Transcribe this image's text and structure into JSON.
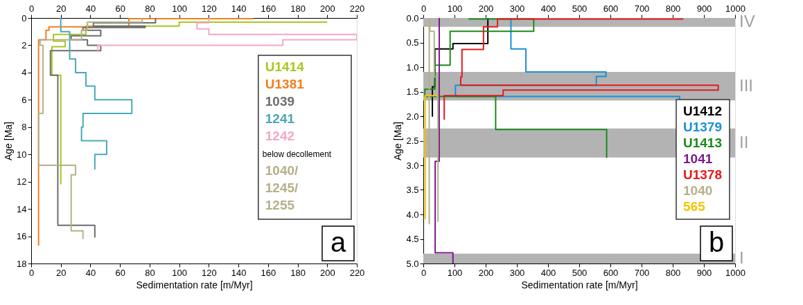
{
  "chart_data": [
    {
      "type": "line",
      "xlabel": "Sedimentation rate [m/Myr]",
      "ylabel": "Age [Ma]",
      "xlim": [
        0,
        220
      ],
      "xticks": [
        0,
        20,
        40,
        60,
        80,
        100,
        120,
        140,
        160,
        180,
        200,
        220
      ],
      "x2lim": [
        0,
        220
      ],
      "x2ticks": [
        0,
        20,
        40,
        60,
        80,
        100,
        120,
        140,
        160,
        180,
        200,
        220
      ],
      "ylim": [
        18,
        0
      ],
      "yticks": [
        0,
        2,
        4,
        6,
        8,
        10,
        12,
        14,
        16,
        18
      ],
      "grid": false,
      "legend": "right",
      "line_style": "solid",
      "annotations": [
        "below decollement",
        "a"
      ],
      "series": [
        {
          "name": "U1414",
          "color": "#a8c81e",
          "x": [
            200,
            100,
            100,
            37,
            37,
            15,
            15,
            23,
            23,
            14,
            14,
            20,
            20
          ],
          "values": [
            0.3,
            0.3,
            0.6,
            0.6,
            1.2,
            1.2,
            1.7,
            1.7,
            2.1,
            2.1,
            4.2,
            4.2,
            12.2
          ]
        },
        {
          "name": "U1381",
          "color": "#f07f22",
          "x": [
            150,
            66,
            66,
            12,
            12,
            10,
            10,
            5,
            5
          ],
          "values": [
            0.05,
            0.05,
            0.65,
            0.65,
            0.9,
            0.9,
            1.6,
            1.6,
            16.7
          ]
        },
        {
          "name": "1039",
          "color": "#6d6d6d",
          "x": [
            84,
            84,
            42,
            42,
            77,
            77,
            35,
            35,
            47,
            47,
            27,
            27,
            38,
            38,
            47,
            47,
            13,
            13,
            18,
            18,
            43,
            43
          ],
          "values": [
            0,
            0.35,
            0.35,
            0.6,
            0.6,
            0.7,
            0.7,
            0.9,
            0.9,
            1.3,
            1.3,
            1.6,
            1.6,
            2.0,
            2.0,
            2.4,
            2.4,
            4.2,
            4.2,
            15.2,
            15.2,
            16.1
          ]
        },
        {
          "name": "1241",
          "color": "#4aa8b8",
          "x": [
            20,
            20,
            26,
            26,
            30,
            30,
            37,
            37,
            43,
            43,
            68,
            68,
            35,
            35,
            34,
            34,
            51,
            51,
            43,
            43
          ],
          "values": [
            0,
            1,
            1,
            3,
            3,
            4,
            4,
            5,
            5,
            6,
            6,
            7,
            7,
            8,
            8,
            9,
            9,
            10,
            10,
            11.1
          ]
        },
        {
          "name": "1242",
          "color": "#f4a7c8",
          "x": [
            120,
            120,
            112,
            112,
            120,
            120,
            220,
            220,
            170,
            170,
            45,
            45
          ],
          "values": [
            0,
            0.35,
            0.35,
            0.8,
            0.8,
            1.2,
            1.2,
            1.6,
            1.6,
            2.0,
            2.0,
            2.5
          ]
        },
        {
          "name": "1040/\n1245/\n1255",
          "color": "#b5b088",
          "x": [
            75,
            75,
            38,
            38,
            34,
            34,
            6,
            6,
            8,
            8,
            5,
            5,
            30,
            30,
            27,
            27,
            35,
            35
          ],
          "values": [
            0,
            0.3,
            0.3,
            0.9,
            0.9,
            1.6,
            1.6,
            2.0,
            2.0,
            7.0,
            7.0,
            10.8,
            10.8,
            11.5,
            11.5,
            15.6,
            15.6,
            16.2
          ]
        }
      ]
    },
    {
      "type": "line",
      "xlabel": "Sedimentation rate [m/Myr]",
      "ylabel": "Age [Ma]",
      "xlim": [
        0,
        1000
      ],
      "xticks": [
        0,
        100,
        200,
        300,
        400,
        500,
        600,
        700,
        800,
        900,
        1000
      ],
      "x2lim": [
        0,
        1000
      ],
      "x2ticks": [
        0,
        100,
        200,
        300,
        400,
        500,
        600,
        700,
        800,
        900,
        1000
      ],
      "ylim": [
        5,
        0
      ],
      "yticks": [
        {
          "value": 0,
          "label": "0.0"
        },
        {
          "value": 0.5,
          "label": "0.5"
        },
        {
          "value": 1,
          "label": "1.0"
        },
        {
          "value": 1.5,
          "label": "1.5"
        },
        {
          "value": 2,
          "label": "2.0"
        },
        {
          "value": 2.5,
          "label": "2.5"
        },
        {
          "value": 3,
          "label": "3.0"
        },
        {
          "value": 3.5,
          "label": "3.5"
        },
        {
          "value": 4,
          "label": "4.0"
        },
        {
          "value": 4.5,
          "label": "4.5"
        },
        {
          "value": 5,
          "label": "5.0"
        }
      ],
      "grid": false,
      "legend": "right",
      "line_style": "solid",
      "annotations": [
        "b"
      ],
      "bands": [
        {
          "axis": "y",
          "from": 0,
          "to": 0.18,
          "label": "IV",
          "color": "#b3b3b3"
        },
        {
          "axis": "y",
          "from": 1.1,
          "to": 1.68,
          "label": "III",
          "color": "#b3b3b3"
        },
        {
          "axis": "y",
          "from": 2.25,
          "to": 2.84,
          "label": "II",
          "color": "#b3b3b3"
        },
        {
          "axis": "y",
          "from": 4.8,
          "to": 5.0,
          "label": "I",
          "color": "#b3b3b3"
        }
      ],
      "series": [
        {
          "name": "U1412",
          "color": "#000000",
          "x": [
            207,
            207,
            95,
            95,
            37,
            37,
            29,
            29
          ],
          "values": [
            0,
            0.52,
            0.52,
            0.63,
            0.63,
            1.4,
            1.4,
            2.01
          ]
        },
        {
          "name": "U1379",
          "color": "#1b8fd6",
          "x": [
            281,
            281,
            329,
            329,
            586,
            586,
            555,
            555,
            103,
            103,
            822,
            822
          ],
          "values": [
            0,
            0.63,
            0.63,
            1.1,
            1.1,
            1.19,
            1.19,
            1.37,
            1.37,
            1.6,
            1.6,
            1.65
          ]
        },
        {
          "name": "U1413",
          "color": "#1a8a1a",
          "x": [
            145,
            354,
            354,
            86,
            86,
            37,
            37,
            5,
            5,
            232,
            232,
            588,
            588
          ],
          "values": [
            0.02,
            0.02,
            0.27,
            0.27,
            0.96,
            0.96,
            1.45,
            1.45,
            1.6,
            1.6,
            2.27,
            2.27,
            2.85
          ]
        },
        {
          "name": "1041",
          "color": "#7b1a8a",
          "x": [
            51,
            51,
            38,
            38,
            95,
            95
          ],
          "values": [
            0,
            2.92,
            2.92,
            4.78,
            4.78,
            5.0
          ]
        },
        {
          "name": "U1378",
          "color": "#e8191b",
          "x": [
            834,
            238,
            238,
            193,
            193,
            124,
            124,
            120,
            120,
            946,
            946,
            256,
            256,
            67,
            67
          ],
          "values": [
            0.02,
            0.02,
            0.18,
            0.18,
            0.64,
            0.64,
            1.2,
            1.2,
            1.37,
            1.37,
            1.47,
            1.47,
            1.58,
            1.58,
            2.07
          ]
        },
        {
          "name": "1040",
          "color": "#b5b088",
          "x": [
            19,
            19,
            21,
            21,
            35,
            35,
            45,
            45,
            47,
            47
          ],
          "values": [
            4.2,
            0,
            0,
            0.27,
            0.27,
            1.2,
            1.2,
            1.6,
            1.6,
            4.15
          ]
        },
        {
          "name": "565",
          "color": "#f5c400",
          "x": [
            47,
            6,
            6
          ],
          "values": [
            1.58,
            1.58,
            4.1
          ]
        }
      ]
    }
  ]
}
